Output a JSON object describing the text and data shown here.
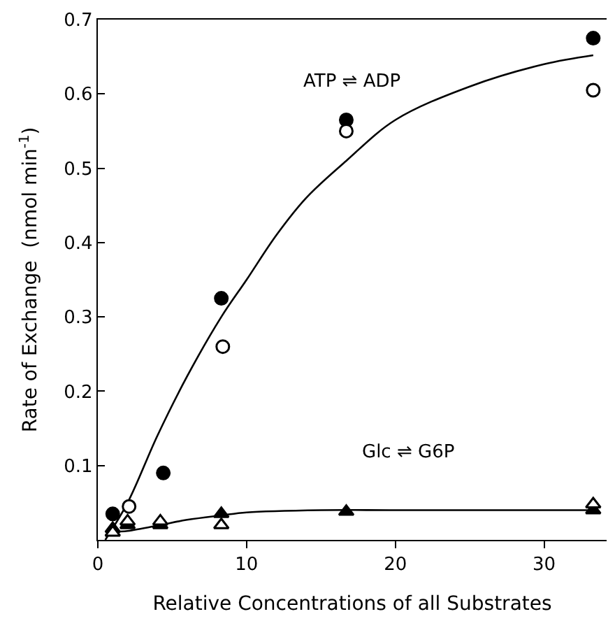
{
  "chart_data": {
    "type": "scatter",
    "xlabel": "Relative Concentrations of all Substrates",
    "ylabel": "Rate of Exchange  (nmol min$^{-1}$)",
    "xlim": [
      0,
      34.2
    ],
    "ylim": [
      0,
      0.7
    ],
    "xticks": [
      0,
      10,
      20,
      30
    ],
    "yticks": [
      0.1,
      0.2,
      0.3,
      0.4,
      0.5,
      0.6,
      0.7
    ],
    "annotations": [
      "ATP ⇌ ADP",
      "Glc ⇌ G6P"
    ],
    "series": [
      {
        "type": "line",
        "color": "#000000",
        "marker": "none",
        "x": [
          0.5,
          2,
          4,
          6,
          8.3,
          10,
          12,
          14,
          16.7,
          20,
          25,
          30,
          33.3
        ],
        "values": [
          0,
          0.05,
          0.14,
          0.22,
          0.3,
          0.35,
          0.41,
          0.46,
          0.51,
          0.565,
          0.61,
          0.64,
          0.652
        ]
      },
      {
        "type": "line",
        "color": "#000000",
        "marker": "none",
        "x": [
          0.5,
          1,
          2,
          4.2,
          6,
          8.3,
          10,
          15,
          20,
          33.3
        ],
        "values": [
          0.005,
          0.01,
          0.012,
          0.02,
          0.027,
          0.033,
          0.037,
          0.04,
          0.04,
          0.04
        ]
      },
      {
        "color": "#000000",
        "marker": "circle",
        "x": [
          1,
          4.4,
          8.3,
          16.7,
          33.3
        ],
        "values": [
          0.035,
          0.09,
          0.325,
          0.565,
          0.675
        ]
      },
      {
        "color": "#ffffff",
        "marker": "circle",
        "x": [
          2.1,
          8.4,
          16.7,
          33.3
        ],
        "values": [
          0.045,
          0.26,
          0.55,
          0.605
        ]
      },
      {
        "color": "#000000",
        "marker": "triangle",
        "x": [
          1,
          2,
          4.2,
          8.3,
          16.7,
          33.3
        ],
        "values": [
          0.015,
          0.02,
          0.02,
          0.035,
          0.038,
          0.04
        ]
      },
      {
        "color": "#ffffff",
        "marker": "triangle",
        "x": [
          1,
          2,
          4.2,
          8.3,
          16.7,
          33.3
        ],
        "values": [
          0.01,
          0.025,
          0.025,
          0.02,
          null,
          0.048
        ]
      }
    ]
  }
}
